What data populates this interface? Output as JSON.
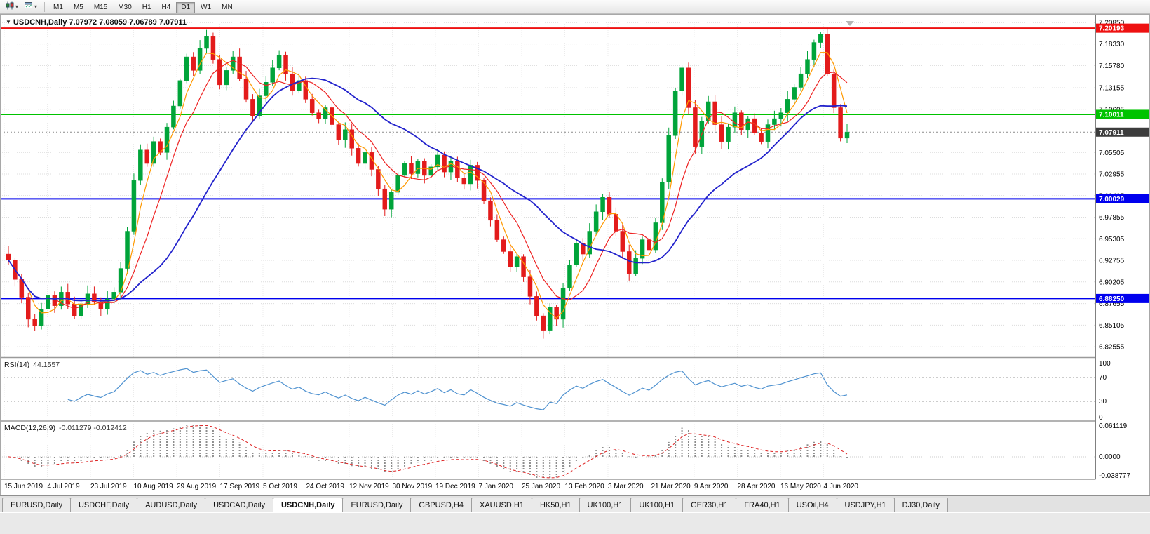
{
  "toolbar": {
    "timeframes": [
      "M1",
      "M5",
      "M15",
      "M30",
      "H1",
      "H4",
      "D1",
      "W1",
      "MN"
    ],
    "active_timeframe": "D1"
  },
  "chart_data": {
    "type": "candlestick",
    "symbol": "USDCNH",
    "timeframe": "Daily",
    "title": "USDCNH,Daily",
    "current_bar_ohlc": "7.07972 7.08059 7.06789 7.07911",
    "ylim": [
      6.814,
      7.212
    ],
    "y_tick_labels": [
      "7.20850",
      "7.18330",
      "7.15780",
      "7.13155",
      "7.10605",
      "7.08055",
      "7.05505",
      "7.02955",
      "7.00405",
      "6.97855",
      "6.95305",
      "6.92755",
      "6.90205",
      "6.87655",
      "6.85105",
      "6.82555"
    ],
    "x_labels": [
      "15 Jun 2019",
      "4 Jul 2019",
      "23 Jul 2019",
      "10 Aug 2019",
      "29 Aug 2019",
      "17 Sep 2019",
      "5 Oct 2019",
      "24 Oct 2019",
      "12 Nov 2019",
      "30 Nov 2019",
      "19 Dec 2019",
      "7 Jan 2020",
      "25 Jan 2020",
      "13 Feb 2020",
      "3 Mar 2020",
      "21 Mar 2020",
      "9 Apr 2020",
      "28 Apr 2020",
      "16 May 2020",
      "4 Jun 2020"
    ],
    "closes": [
      6.928,
      6.905,
      6.884,
      6.858,
      6.85,
      6.87,
      6.886,
      6.874,
      6.89,
      6.876,
      6.862,
      6.876,
      6.888,
      6.878,
      6.87,
      6.882,
      6.89,
      6.918,
      6.962,
      7.022,
      7.058,
      7.042,
      7.068,
      7.055,
      7.085,
      7.11,
      7.14,
      7.168,
      7.152,
      7.178,
      7.192,
      7.165,
      7.135,
      7.152,
      7.168,
      7.142,
      7.118,
      7.098,
      7.122,
      7.138,
      7.155,
      7.17,
      7.148,
      7.128,
      7.14,
      7.118,
      7.102,
      7.095,
      7.108,
      7.088,
      7.07,
      7.082,
      7.06,
      7.042,
      7.055,
      7.035,
      7.012,
      6.988,
      7.008,
      7.028,
      7.042,
      7.03,
      7.045,
      7.028,
      7.038,
      7.052,
      7.032,
      7.045,
      7.025,
      7.018,
      7.04,
      7.022,
      6.998,
      6.975,
      6.952,
      6.938,
      6.92,
      6.932,
      6.908,
      6.885,
      6.862,
      6.845,
      6.872,
      6.858,
      6.895,
      6.922,
      6.948,
      6.935,
      6.962,
      6.985,
      7.002,
      6.982,
      6.962,
      6.938,
      6.912,
      6.93,
      6.952,
      6.94,
      6.972,
      7.02,
      7.075,
      7.128,
      7.155,
      7.108,
      7.062,
      7.092,
      7.115,
      7.088,
      7.068,
      7.085,
      7.102,
      7.082,
      7.095,
      7.078,
      7.068,
      7.088,
      7.095,
      7.102,
      7.118,
      7.132,
      7.148,
      7.165,
      7.185,
      7.195,
      7.148,
      7.108,
      7.072,
      7.079
    ],
    "horizontal_lines": [
      {
        "price": 7.20193,
        "label": "7.20193",
        "color": "#ee1111"
      },
      {
        "price": 7.10011,
        "label": "7.10011",
        "color": "#00c300"
      },
      {
        "price": 7.00029,
        "label": "7.00029",
        "color": "#0000ee"
      },
      {
        "price": 6.8825,
        "label": "6.88250",
        "color": "#0000ee"
      }
    ],
    "current_price": {
      "price": 7.07911,
      "label": "7.07911",
      "color": "#3c3c3c"
    },
    "moving_averages": [
      {
        "name": "fast",
        "color": "#ff9900"
      },
      {
        "name": "medium",
        "color": "#ee2222"
      },
      {
        "name": "slow",
        "color": "#2222cc"
      }
    ],
    "candle_colors": {
      "up": "#00a43a",
      "down": "#e31b1b"
    },
    "rsi": {
      "label": "RSI(14)",
      "current": "44.1557",
      "axis_labels": [
        "100",
        "70",
        "30",
        "0"
      ],
      "line_color": "#4f92d0"
    },
    "macd": {
      "label": "MACD(12,26,9)",
      "current": "-0.011279 -0.012412",
      "axis_labels": [
        "0.061119",
        "0.0000",
        "-0.038777"
      ],
      "histogram_color": "#8d8d8d",
      "signal_color": "#dd2222"
    }
  },
  "tabs": {
    "items": [
      "EURUSD,Daily",
      "USDCHF,Daily",
      "AUDUSD,Daily",
      "USDCAD,Daily",
      "USDCNH,Daily",
      "EURUSD,Daily",
      "GBPUSD,H4",
      "XAUUSD,H1",
      "HK50,H1",
      "UK100,H1",
      "UK100,H1",
      "GER30,H1",
      "FRA40,H1",
      "USOil,H4",
      "USDJPY,H1",
      "DJ30,Daily"
    ],
    "active_index": 4
  }
}
